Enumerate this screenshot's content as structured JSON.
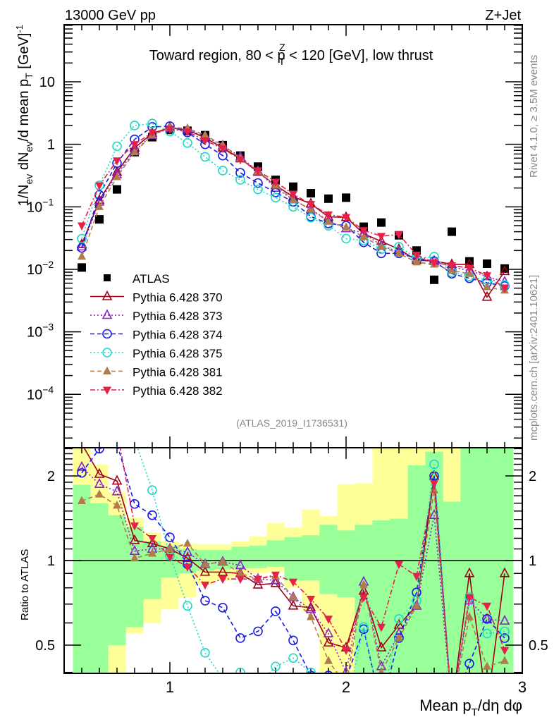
{
  "header": {
    "left": "13000 GeV pp",
    "right": "Z+Jet"
  },
  "side_labels": {
    "rivet": "Rivet 4.1.0, ≥ 3.5M events",
    "mcplots": "mcplots.cern.ch [arXiv:2401.10621]"
  },
  "chart_data": [
    {
      "type": "line",
      "panel": "main",
      "title": "Toward region, 80 < p_T^Z < 120 [GeV], low thrust",
      "title_parts": {
        "pre": "Toward region, 80 < p",
        "sup": "Z",
        "sub": "T",
        "post": " < 120 [GeV], low thrust"
      },
      "ylabel": "1/N_ev dN_ev/d mean p_T [GeV]^-1",
      "ylabel_parts": {
        "a": "1/N",
        "a_sub": "ev",
        "b": " dN",
        "b_sub": "ev",
        "c": "/d mean p",
        "c_sub": "T",
        "d": " [GeV]",
        "d_sup": "-1"
      },
      "yscale": "log",
      "ylim": [
        1.4e-05,
        82
      ],
      "xlim": [
        0.4,
        3.0
      ],
      "yticks": [
        {
          "value": 10,
          "label": "10"
        },
        {
          "value": 1,
          "label": "1"
        },
        {
          "value": 0.1,
          "label": "10",
          "exp": "−1"
        },
        {
          "value": 0.01,
          "label": "10",
          "exp": "−2"
        },
        {
          "value": 0.001,
          "label": "10",
          "exp": "−3"
        },
        {
          "value": 0.0001,
          "label": "10",
          "exp": "−4"
        }
      ],
      "annotation": "(ATLAS_2019_I1736531)",
      "legend_position": "left-middle",
      "x": [
        0.5,
        0.6,
        0.7,
        0.8,
        0.9,
        1.0,
        1.1,
        1.2,
        1.3,
        1.4,
        1.5,
        1.6,
        1.7,
        1.8,
        1.9,
        2.0,
        2.1,
        2.2,
        2.3,
        2.4,
        2.5,
        2.6,
        2.7,
        2.8,
        2.9
      ],
      "series": [
        {
          "name": "ATLAS",
          "color": "#000000",
          "marker": "square",
          "dash": "none",
          "values": [
            0.0107,
            0.063,
            0.19,
            0.75,
            1.3,
            1.7,
            1.65,
            1.4,
            0.97,
            0.66,
            0.44,
            0.27,
            0.21,
            0.165,
            0.135,
            0.14,
            0.048,
            0.056,
            0.035,
            0.02,
            0.0068,
            0.04,
            0.0134,
            0.0123,
            0.0103
          ]
        },
        {
          "name": "Pythia 6.428 370",
          "color": "#a00014",
          "marker": "triangle-open",
          "dash": "solid",
          "values": [
            0.025,
            0.128,
            0.36,
            0.88,
            1.5,
            1.85,
            1.7,
            1.27,
            0.88,
            0.59,
            0.36,
            0.22,
            0.145,
            0.112,
            0.069,
            0.068,
            0.037,
            0.028,
            0.021,
            0.014,
            0.0136,
            0.012,
            0.012,
            0.0036,
            0.0093
          ]
        },
        {
          "name": "Pythia 6.428 373",
          "color": "#8a20d0",
          "marker": "triangle-open",
          "dash": "dotted",
          "values": [
            0.023,
            0.12,
            0.33,
            0.79,
            1.4,
            1.8,
            1.72,
            1.35,
            0.95,
            0.63,
            0.37,
            0.2,
            0.13,
            0.091,
            0.06,
            0.045,
            0.038,
            0.024,
            0.019,
            0.015,
            0.0135,
            0.011,
            0.0095,
            0.0077,
            0.0063
          ]
        },
        {
          "name": "Pythia 6.428 374",
          "color": "#1a1ae6",
          "marker": "circle-open",
          "dash": "dashed",
          "values": [
            0.022,
            0.155,
            0.5,
            1.2,
            1.9,
            1.95,
            1.55,
            1.0,
            0.66,
            0.35,
            0.24,
            0.17,
            0.12,
            0.07,
            0.054,
            0.05,
            0.027,
            0.018,
            0.018,
            0.015,
            0.0135,
            0.0085,
            0.0072,
            0.0061,
            0.0054
          ]
        },
        {
          "name": "Pythia 6.428 375",
          "color": "#20d8c8",
          "marker": "circle-open",
          "dash": "dotted",
          "values": [
            0.031,
            0.22,
            0.93,
            2.0,
            2.15,
            1.6,
            1.05,
            0.63,
            0.38,
            0.27,
            0.19,
            0.14,
            0.1,
            0.067,
            0.05,
            0.031,
            0.029,
            0.021,
            0.023,
            0.015,
            0.016,
            0.009,
            0.0077,
            0.0067,
            0.0056
          ]
        },
        {
          "name": "Pythia 6.428 381",
          "color": "#b07c4a",
          "marker": "triangle-filled",
          "dash": "dashed",
          "values": [
            0.016,
            0.1,
            0.3,
            0.75,
            1.4,
            1.85,
            1.8,
            1.4,
            0.97,
            0.6,
            0.37,
            0.22,
            0.13,
            0.09,
            0.058,
            0.047,
            0.033,
            0.023,
            0.018,
            0.013,
            0.012,
            0.0095,
            0.0085,
            0.0052,
            0.0046
          ]
        },
        {
          "name": "Pythia 6.428 382",
          "color": "#e6204a",
          "marker": "triangle-down-filled",
          "dash": "dashdot",
          "values": [
            0.05,
            0.22,
            0.55,
            1.0,
            1.55,
            1.75,
            1.6,
            1.15,
            0.86,
            0.57,
            0.38,
            0.25,
            0.16,
            0.11,
            0.075,
            0.068,
            0.042,
            0.034,
            0.036,
            0.017,
            0.0128,
            0.0115,
            0.0105,
            0.008,
            0.005
          ]
        }
      ]
    },
    {
      "type": "line",
      "panel": "ratio",
      "ylabel": "Ratio to ATLAS",
      "xlabel": "Mean p_T/dη dφ",
      "xlabel_parts": {
        "a": "Mean p",
        "a_sub": "T",
        "b": "/dη dφ"
      },
      "yscale": "log",
      "ylim": [
        0.397,
        2.52
      ],
      "xlim": [
        0.4,
        3.0
      ],
      "yticks": [
        {
          "value": 0.5,
          "label": "0.5"
        },
        {
          "value": 1,
          "label": "1"
        },
        {
          "value": 2,
          "label": "2"
        }
      ],
      "xticks": [
        {
          "value": 1,
          "label": "1"
        },
        {
          "value": 2,
          "label": "2"
        },
        {
          "value": 3,
          "label": "3"
        }
      ],
      "reference_line": 1,
      "bands": {
        "edges": [
          0.45,
          0.55,
          0.65,
          0.75,
          0.85,
          0.95,
          1.05,
          1.15,
          1.25,
          1.35,
          1.45,
          1.55,
          1.65,
          1.75,
          1.85,
          1.95,
          2.05,
          2.15,
          2.25,
          2.35,
          2.45,
          2.55,
          2.65,
          2.75,
          2.85,
          2.95
        ],
        "inner_color": "#99ff99",
        "outer_color": "#ffff99",
        "inner_lo": [
          0.4,
          0.4,
          0.5,
          0.58,
          0.73,
          0.87,
          0.9,
          0.92,
          0.93,
          0.94,
          0.94,
          0.95,
          0.85,
          0.85,
          0.76,
          0.74,
          0.4,
          0.4,
          0.4,
          0.4,
          0.4,
          0.4,
          0.4,
          0.4,
          0.4
        ],
        "inner_hi": [
          1.86,
          1.6,
          1.45,
          1.32,
          1.17,
          1.13,
          1.1,
          1.09,
          1.09,
          1.12,
          1.13,
          1.18,
          1.21,
          1.23,
          1.34,
          1.28,
          1.34,
          1.39,
          1.41,
          2.18,
          2.44,
          1.62,
          2.52,
          2.52,
          2.52
        ],
        "outer_lo": [
          0.4,
          0.4,
          0.4,
          0.55,
          0.6,
          0.67,
          0.74,
          0.82,
          0.85,
          0.88,
          0.9,
          0.91,
          0.8,
          0.66,
          0.4,
          0.4,
          0.4,
          0.4,
          0.4,
          0.4,
          0.4,
          0.4,
          0.4,
          0.4,
          0.4
        ],
        "outer_hi": [
          2.52,
          2.2,
          1.75,
          1.42,
          1.26,
          1.17,
          1.15,
          1.14,
          1.14,
          1.17,
          1.22,
          1.36,
          1.31,
          1.52,
          1.44,
          1.87,
          1.88,
          2.52,
          2.52,
          2.52,
          2.52,
          2.52,
          2.52,
          2.52,
          2.52
        ]
      },
      "series": [
        {
          "name": "Pythia 6.428 370",
          "values": [
            2.6,
            2.03,
            1.92,
            1.18,
            1.15,
            1.1,
            1.02,
            0.91,
            0.91,
            0.9,
            0.82,
            0.83,
            0.69,
            0.68,
            0.51,
            0.49,
            0.78,
            0.49,
            0.59,
            0.69,
            2.0,
            0.3,
            0.9,
            0.3,
            0.9
          ]
        },
        {
          "name": "Pythia 6.428 373",
          "values": [
            2.15,
            1.87,
            1.76,
            1.08,
            1.1,
            1.1,
            1.07,
            0.97,
            0.99,
            0.96,
            0.86,
            0.85,
            0.74,
            0.67,
            0.55,
            0.4,
            0.84,
            0.42,
            0.55,
            0.69,
            1.45,
            0.3,
            0.72,
            0.62,
            0.61
          ]
        },
        {
          "name": "Pythia 6.428 374",
          "values": [
            2.05,
            2.5,
            2.6,
            1.59,
            1.45,
            1.21,
            0.97,
            0.72,
            0.68,
            0.53,
            0.56,
            0.66,
            0.52,
            0.39,
            0.39,
            0.38,
            0.57,
            0.3,
            0.53,
            0.77,
            2.0,
            0.3,
            0.43,
            0.62,
            0.53
          ]
        },
        {
          "name": "Pythia 6.428 375",
          "values": [
            2.9,
            3.5,
            4.9,
            2.7,
            1.78,
            1.04,
            0.69,
            0.47,
            0.38,
            0.4,
            0.36,
            0.42,
            0.45,
            0.4,
            0.38,
            0.3,
            0.58,
            0.3,
            0.62,
            0.72,
            2.2,
            0.3,
            0.74,
            0.55,
            0.56
          ]
        },
        {
          "name": "Pythia 6.428 381",
          "values": [
            1.63,
            1.72,
            1.57,
            1.02,
            1.06,
            1.1,
            1.15,
            0.97,
            0.99,
            0.9,
            0.86,
            0.88,
            0.74,
            0.63,
            0.44,
            0.36,
            0.82,
            0.4,
            0.53,
            0.69,
            1.78,
            0.3,
            0.63,
            0.42,
            0.44
          ]
        },
        {
          "name": "Pythia 6.428 382",
          "values": [
            4.7,
            3.5,
            2.9,
            1.33,
            1.2,
            1.03,
            0.95,
            0.82,
            0.86,
            0.86,
            0.86,
            0.89,
            0.84,
            0.73,
            0.62,
            0.48,
            0.74,
            0.58,
            0.97,
            0.88,
            1.88,
            0.3,
            0.74,
            0.69,
            0.48
          ]
        }
      ]
    }
  ]
}
